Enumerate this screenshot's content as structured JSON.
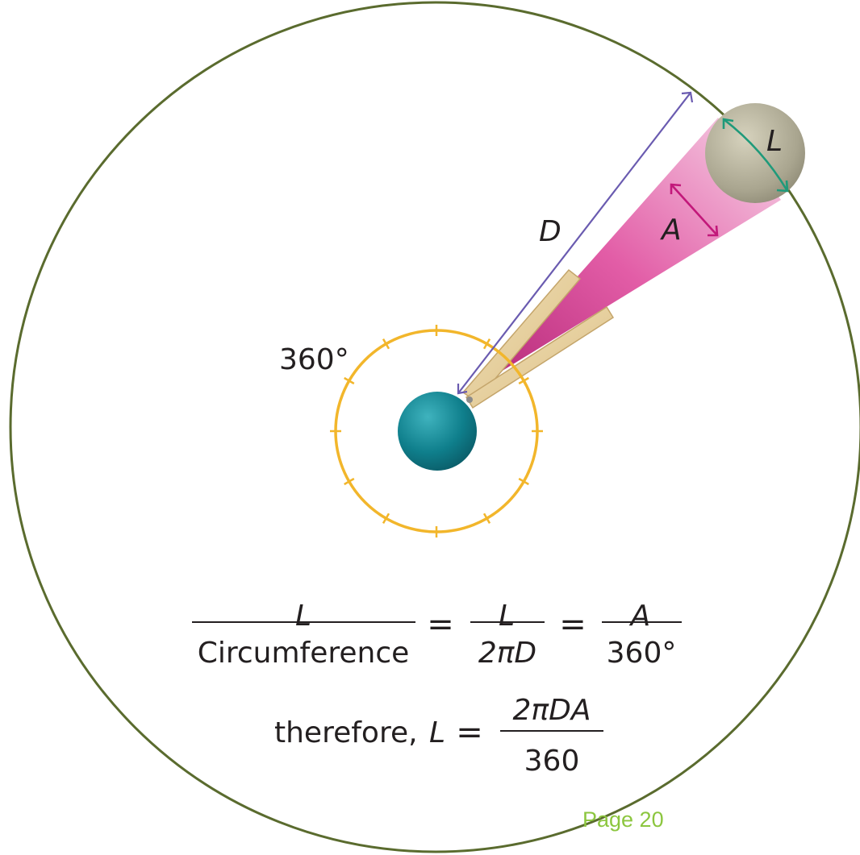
{
  "labels": {
    "angle": "A",
    "distance": "D",
    "length": "L",
    "full_circle": "360°"
  },
  "equation": {
    "frac1_num": "L",
    "frac1_den": "Circumference",
    "equals1": "=",
    "frac2_num": "L",
    "frac2_den": "2πD",
    "equals2": "=",
    "frac3_num": "A",
    "frac3_den": "360°",
    "therefore_prefix": "therefore,",
    "therefore_var": "L",
    "equals3": "=",
    "result_num": "2πDA",
    "result_den": "360"
  },
  "footer": {
    "page": "Page 20"
  },
  "colors": {
    "outer_circle": "#5a6b2e",
    "orbit_ring": "#f2b62b",
    "earth": "#0f7f8c",
    "object": "#a9a58f",
    "distance_arrow": "#6a5bb0",
    "angle_arrow": "#c2187a",
    "length_arrow": "#1f9a7a",
    "sight_cone": "#d9479a"
  }
}
